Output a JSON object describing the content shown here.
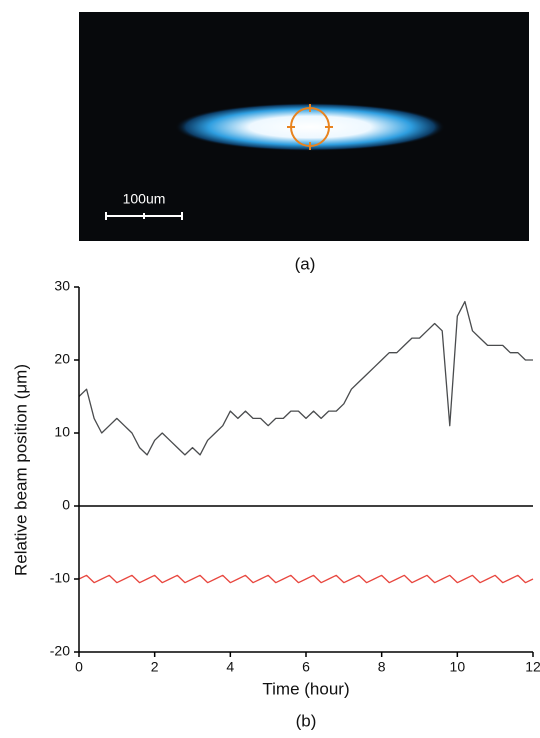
{
  "image_panel": {
    "scale_bar_label": "100um",
    "caption": "(a)"
  },
  "chart_data": {
    "type": "line",
    "caption": "(b)",
    "x_label": "Time (hour)",
    "y_label": "Relative beam position (μm)",
    "xlim": [
      0,
      12
    ],
    "xticks": [
      0,
      2,
      4,
      6,
      8,
      10,
      12
    ],
    "ylim": [
      -20,
      30
    ],
    "yticks": [
      -20,
      -10,
      0,
      10,
      20,
      30
    ],
    "zero_line": true,
    "x": [
      0,
      0.2,
      0.4,
      0.6,
      0.8,
      1.0,
      1.2,
      1.4,
      1.6,
      1.8,
      2.0,
      2.2,
      2.4,
      2.6,
      2.8,
      3.0,
      3.2,
      3.4,
      3.6,
      3.8,
      4.0,
      4.2,
      4.4,
      4.6,
      4.8,
      5.0,
      5.2,
      5.4,
      5.6,
      5.8,
      6.0,
      6.2,
      6.4,
      6.6,
      6.8,
      7.0,
      7.2,
      7.4,
      7.6,
      7.8,
      8.0,
      8.2,
      8.4,
      8.6,
      8.8,
      9.0,
      9.2,
      9.4,
      9.6,
      9.8,
      10.0,
      10.2,
      10.4,
      10.6,
      10.8,
      11.0,
      11.2,
      11.4,
      11.6,
      11.8,
      12.0
    ],
    "series": [
      {
        "color": "#4a4c4e",
        "values": [
          15,
          16,
          12,
          10,
          11,
          12,
          11,
          10,
          8,
          7,
          9,
          10,
          9,
          8,
          7,
          8,
          7,
          9,
          10,
          11,
          13,
          12,
          13,
          12,
          12,
          11,
          12,
          12,
          13,
          13,
          12,
          13,
          12,
          13,
          13,
          14,
          16,
          17,
          18,
          19,
          20,
          21,
          21,
          22,
          23,
          23,
          24,
          25,
          24,
          11,
          26,
          28,
          24,
          23,
          22,
          22,
          22,
          21,
          21,
          20,
          20
        ]
      },
      {
        "color": "#e8463e",
        "values": [
          -10,
          -9.5,
          -10.5,
          -10,
          -9.5,
          -10.5,
          -10,
          -9.5,
          -10.5,
          -10,
          -9.5,
          -10.5,
          -10,
          -9.5,
          -10.5,
          -10,
          -9.5,
          -10.5,
          -10,
          -9.5,
          -10.5,
          -10,
          -9.5,
          -10.5,
          -10,
          -9.5,
          -10.5,
          -10,
          -9.5,
          -10.5,
          -10,
          -9.5,
          -10.5,
          -10,
          -9.5,
          -10.5,
          -10,
          -9.5,
          -10.5,
          -10,
          -9.5,
          -10.5,
          -10,
          -9.5,
          -10.5,
          -10,
          -9.5,
          -10.5,
          -10,
          -9.5,
          -10.5,
          -10,
          -9.5,
          -10.5,
          -10,
          -9.5,
          -10.5,
          -10,
          -9.5,
          -10.5,
          -10
        ]
      }
    ]
  }
}
